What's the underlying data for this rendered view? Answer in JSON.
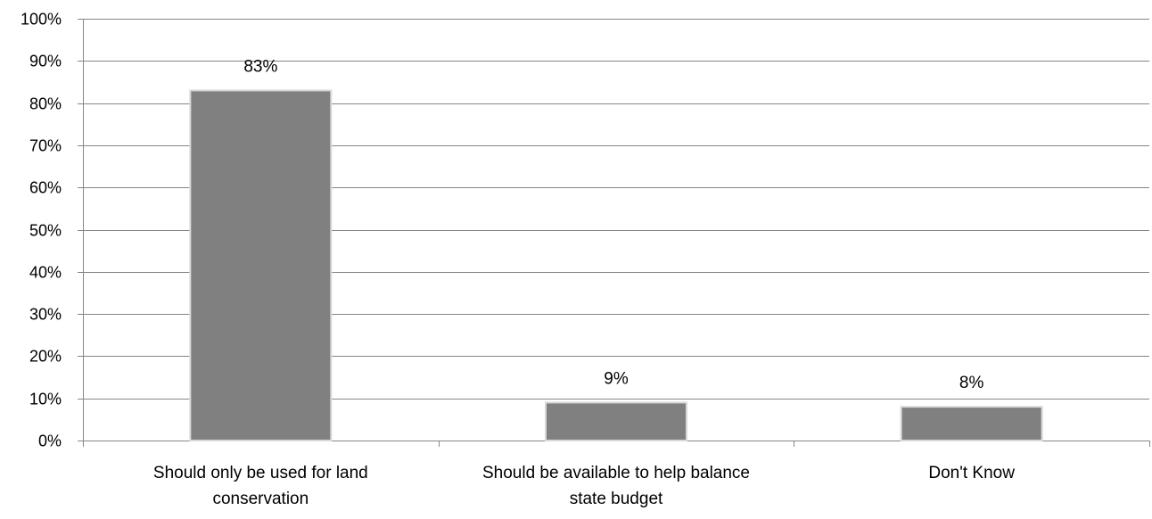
{
  "chart_data": {
    "type": "bar",
    "categories": [
      [
        "Should only be used for land",
        "conservation"
      ],
      [
        "Should be available to help balance",
        "state budget"
      ],
      [
        "Don't Know"
      ]
    ],
    "values": [
      83,
      9,
      8
    ],
    "data_labels": [
      "83%",
      "9%",
      "8%"
    ],
    "ylim": [
      0,
      100
    ],
    "yticks": [
      0,
      10,
      20,
      30,
      40,
      50,
      60,
      70,
      80,
      90,
      100
    ],
    "ytick_labels": [
      "0%",
      "10%",
      "20%",
      "30%",
      "40%",
      "50%",
      "60%",
      "70%",
      "80%",
      "90%",
      "100%"
    ],
    "title": "",
    "xlabel": "",
    "ylabel": "",
    "grid": true,
    "legend": "none",
    "colors": {
      "bar": "#808080",
      "bar_edge": "#d9d9d9",
      "grid": "#868686",
      "axis": "#868686",
      "text": "#000000"
    }
  }
}
